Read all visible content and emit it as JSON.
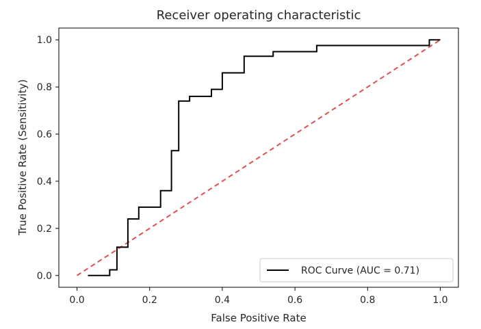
{
  "chart_data": {
    "type": "line",
    "title": "Receiver operating characteristic",
    "xlabel": "False Positive Rate",
    "ylabel": "True Positive Rate (Sensitivity)",
    "xlim": [
      -0.05,
      1.05
    ],
    "ylim": [
      -0.05,
      1.05
    ],
    "xticks": [
      "0.0",
      "0.2",
      "0.4",
      "0.6",
      "0.8",
      "1.0"
    ],
    "yticks": [
      "0.0",
      "0.2",
      "0.4",
      "0.6",
      "0.8",
      "1.0"
    ],
    "legend_position": "lower-right",
    "series": [
      {
        "name": "ROC Curve (AUC = 0.71)",
        "color": "#000000",
        "style": "solid",
        "step": true,
        "x": [
          0.03,
          0.09,
          0.09,
          0.11,
          0.11,
          0.14,
          0.14,
          0.17,
          0.17,
          0.23,
          0.23,
          0.26,
          0.26,
          0.28,
          0.28,
          0.31,
          0.31,
          0.37,
          0.37,
          0.4,
          0.4,
          0.46,
          0.46,
          0.54,
          0.54,
          0.66,
          0.66,
          0.97,
          0.97,
          1.0
        ],
        "y": [
          0.0,
          0.0,
          0.024,
          0.024,
          0.12,
          0.12,
          0.24,
          0.24,
          0.29,
          0.29,
          0.36,
          0.36,
          0.53,
          0.53,
          0.74,
          0.74,
          0.76,
          0.76,
          0.79,
          0.79,
          0.86,
          0.86,
          0.93,
          0.93,
          0.95,
          0.95,
          0.976,
          0.976,
          1.0,
          1.0
        ]
      },
      {
        "name": "",
        "color": "#e05050",
        "style": "dashed",
        "x": [
          0,
          1
        ],
        "y": [
          0,
          1
        ]
      }
    ]
  }
}
